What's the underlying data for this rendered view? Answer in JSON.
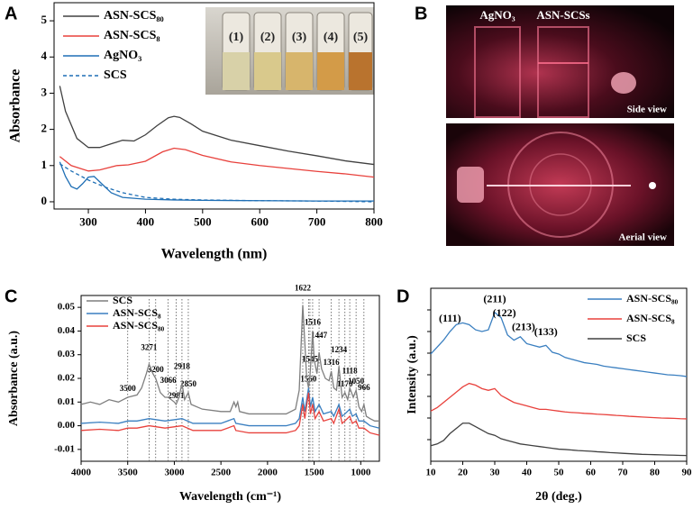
{
  "panels": [
    "A",
    "B",
    "C",
    "D"
  ],
  "photos": {
    "inset_labels": [
      "(1)",
      "(2)",
      "(3)",
      "(4)",
      "(5)"
    ],
    "side_labels": [
      "AgNO₃",
      "ASN-SCSs"
    ],
    "side_caption": "Side view",
    "aerial_caption": "Aerial view"
  },
  "chart_data": [
    {
      "type": "line",
      "xlabel": "Wavelength (nm)",
      "ylabel": "Absorbance",
      "xlim": [
        240,
        800
      ],
      "ylim": [
        -0.2,
        5.5
      ],
      "xticks": [
        300,
        400,
        500,
        600,
        700,
        800
      ],
      "yticks": [
        0,
        1,
        2,
        3,
        4,
        5
      ],
      "legend": "upper left",
      "series": [
        {
          "name": "ASN-SCS₈₀",
          "color": "#404040",
          "x": [
            250,
            260,
            280,
            300,
            320,
            340,
            360,
            380,
            400,
            420,
            440,
            450,
            460,
            480,
            500,
            550,
            600,
            650,
            700,
            750,
            800
          ],
          "values": [
            3.2,
            2.5,
            1.75,
            1.5,
            1.5,
            1.6,
            1.7,
            1.68,
            1.85,
            2.1,
            2.32,
            2.36,
            2.33,
            2.15,
            1.95,
            1.7,
            1.55,
            1.4,
            1.27,
            1.13,
            1.03
          ]
        },
        {
          "name": "ASN-SCS₈",
          "color": "#e8413c",
          "x": [
            250,
            270,
            300,
            320,
            350,
            370,
            400,
            430,
            450,
            470,
            500,
            550,
            600,
            650,
            700,
            750,
            800
          ],
          "values": [
            1.25,
            1.0,
            0.85,
            0.88,
            1.0,
            1.02,
            1.12,
            1.38,
            1.48,
            1.44,
            1.28,
            1.1,
            1.0,
            0.92,
            0.84,
            0.77,
            0.68
          ]
        },
        {
          "name": "AgNO₃",
          "color": "#1f6fb5",
          "x": [
            250,
            260,
            270,
            280,
            290,
            300,
            310,
            320,
            340,
            360,
            400,
            450,
            500,
            600,
            700,
            800
          ],
          "values": [
            1.1,
            0.7,
            0.42,
            0.35,
            0.5,
            0.68,
            0.7,
            0.55,
            0.25,
            0.12,
            0.07,
            0.05,
            0.04,
            0.03,
            0.02,
            0.02
          ]
        },
        {
          "name": "SCS",
          "color": "#1f6fb5",
          "dash": "dashed",
          "x": [
            250,
            270,
            300,
            330,
            360,
            400,
            450,
            500,
            600,
            700,
            800
          ],
          "values": [
            1.05,
            0.85,
            0.6,
            0.4,
            0.25,
            0.12,
            0.07,
            0.05,
            0.03,
            0.02,
            0.0
          ]
        }
      ]
    },
    {
      "type": "line",
      "xlabel": "Wavelength (cm⁻¹)",
      "ylabel": "Absorbance (a.u.)",
      "xlim": [
        4000,
        800
      ],
      "ylim": [
        -0.015,
        0.055
      ],
      "xticks": [
        4000,
        3500,
        3000,
        2500,
        2000,
        1500,
        1000
      ],
      "yticks": [
        -0.01,
        {
          "value": 0,
          "label": "0.00"
        },
        0.01,
        0.02,
        0.03,
        0.04,
        0.05
      ],
      "legend": "upper left",
      "peaks": [
        3500,
        3271,
        3200,
        3066,
        2981,
        2918,
        2850,
        1622,
        1560,
        1545,
        1516,
        1447,
        1316,
        1234,
        1170,
        1118,
        1050,
        966
      ],
      "series": [
        {
          "name": "SCS",
          "color": "#7f7f7f",
          "x": [
            4000,
            3900,
            3800,
            3700,
            3600,
            3500,
            3400,
            3350,
            3300,
            3271,
            3230,
            3200,
            3150,
            3100,
            3066,
            3000,
            2981,
            2950,
            2918,
            2890,
            2850,
            2820,
            2700,
            2500,
            2400,
            2360,
            2340,
            2320,
            2300,
            2200,
            2000,
            1800,
            1700,
            1660,
            1622,
            1600,
            1580,
            1560,
            1545,
            1530,
            1516,
            1500,
            1470,
            1447,
            1420,
            1380,
            1340,
            1316,
            1290,
            1260,
            1234,
            1200,
            1170,
            1140,
            1118,
            1080,
            1050,
            1020,
            990,
            966,
            940,
            900,
            850,
            800
          ],
          "values": [
            0.009,
            0.01,
            0.009,
            0.011,
            0.01,
            0.012,
            0.013,
            0.016,
            0.022,
            0.026,
            0.022,
            0.02,
            0.014,
            0.012,
            0.012,
            0.01,
            0.009,
            0.012,
            0.018,
            0.011,
            0.014,
            0.009,
            0.007,
            0.006,
            0.006,
            0.01,
            0.008,
            0.01,
            0.006,
            0.005,
            0.005,
            0.005,
            0.007,
            0.015,
            0.051,
            0.035,
            0.02,
            0.016,
            0.021,
            0.03,
            0.04,
            0.028,
            0.022,
            0.031,
            0.024,
            0.02,
            0.019,
            0.023,
            0.016,
            0.015,
            0.025,
            0.012,
            0.014,
            0.011,
            0.016,
            0.012,
            0.015,
            0.008,
            0.006,
            0.009,
            0.004,
            0.003,
            0.002,
            0.002
          ]
        },
        {
          "name": "ASN-SCS₈",
          "color": "#3a7fc0",
          "x": [
            4000,
            3800,
            3600,
            3500,
            3400,
            3271,
            3100,
            2918,
            2800,
            2500,
            2360,
            2340,
            2200,
            2000,
            1800,
            1700,
            1660,
            1622,
            1600,
            1560,
            1540,
            1516,
            1490,
            1447,
            1400,
            1316,
            1290,
            1234,
            1200,
            1170,
            1118,
            1090,
            1050,
            1020,
            966,
            900,
            800
          ],
          "values": [
            0.001,
            0.0015,
            0.001,
            0.002,
            0.002,
            0.003,
            0.002,
            0.003,
            0.001,
            0.001,
            0.003,
            0.001,
            0.0,
            0.0,
            0.0,
            0.001,
            0.003,
            0.012,
            0.006,
            0.016,
            0.008,
            0.012,
            0.006,
            0.009,
            0.005,
            0.006,
            0.004,
            0.009,
            0.004,
            0.005,
            0.007,
            0.004,
            0.005,
            0.002,
            0.002,
            0.0,
            -0.001
          ]
        },
        {
          "name": "ASN-SCS₈₀",
          "color": "#e8413c",
          "x": [
            4000,
            3800,
            3600,
            3500,
            3400,
            3271,
            3100,
            2918,
            2800,
            2500,
            2360,
            2340,
            2200,
            2000,
            1800,
            1700,
            1660,
            1622,
            1600,
            1560,
            1540,
            1516,
            1490,
            1447,
            1400,
            1316,
            1290,
            1234,
            1200,
            1170,
            1118,
            1090,
            1050,
            1020,
            966,
            900,
            800
          ],
          "values": [
            -0.002,
            -0.0015,
            -0.002,
            -0.001,
            -0.001,
            0.0,
            -0.001,
            0.0,
            -0.002,
            -0.002,
            0.0,
            -0.002,
            -0.003,
            -0.003,
            -0.003,
            -0.002,
            0.0,
            0.009,
            0.003,
            0.014,
            0.005,
            0.009,
            0.003,
            0.006,
            0.002,
            0.003,
            0.001,
            0.007,
            0.001,
            0.002,
            0.004,
            0.001,
            0.002,
            -0.001,
            -0.001,
            -0.003,
            -0.004
          ]
        }
      ]
    },
    {
      "type": "line",
      "xlabel": "2θ (deg.)",
      "ylabel": "Intensity (a.u.)",
      "xlim": [
        10,
        90
      ],
      "ylim": [
        0,
        10
      ],
      "xticks": [
        10,
        20,
        30,
        40,
        50,
        60,
        70,
        80,
        90
      ],
      "legend": "upper right",
      "annotations": [
        {
          "text": "(111)",
          "x": 16
        },
        {
          "text": "(211)",
          "x": 30
        },
        {
          "text": "(122)",
          "x": 33
        },
        {
          "text": "(213)",
          "x": 39
        },
        {
          "text": "(133)",
          "x": 46
        }
      ],
      "x": [
        10,
        12,
        14,
        16,
        18,
        20,
        22,
        24,
        26,
        28,
        30,
        32,
        34,
        36,
        38,
        40,
        42,
        44,
        46,
        48,
        50,
        52,
        54,
        56,
        58,
        60,
        62,
        64,
        66,
        68,
        70,
        72,
        74,
        76,
        78,
        80,
        82,
        84,
        86,
        88,
        90
      ],
      "series": [
        {
          "name": "ASN-SCS₈₀",
          "color": "#3a7fc0",
          "values": [
            6.2,
            6.6,
            7.0,
            7.5,
            7.9,
            8.0,
            7.9,
            7.6,
            7.5,
            7.6,
            8.6,
            8.3,
            7.3,
            7.0,
            7.2,
            6.8,
            6.7,
            6.6,
            6.7,
            6.3,
            6.2,
            6.0,
            5.9,
            5.8,
            5.7,
            5.65,
            5.6,
            5.5,
            5.45,
            5.4,
            5.35,
            5.3,
            5.25,
            5.2,
            5.15,
            5.1,
            5.05,
            5.0,
            4.98,
            4.95,
            4.9
          ]
        },
        {
          "name": "ASN-SCS₈",
          "color": "#e8413c",
          "values": [
            2.9,
            3.1,
            3.4,
            3.7,
            4.0,
            4.3,
            4.5,
            4.4,
            4.2,
            4.1,
            4.2,
            3.8,
            3.6,
            3.4,
            3.3,
            3.2,
            3.1,
            3.0,
            3.0,
            2.95,
            2.9,
            2.85,
            2.82,
            2.8,
            2.77,
            2.75,
            2.72,
            2.7,
            2.68,
            2.65,
            2.63,
            2.6,
            2.58,
            2.56,
            2.54,
            2.52,
            2.5,
            2.49,
            2.48,
            2.46,
            2.45
          ]
        },
        {
          "name": "SCS",
          "color": "#404040",
          "values": [
            0.9,
            1.0,
            1.2,
            1.6,
            1.9,
            2.2,
            2.2,
            2.0,
            1.8,
            1.6,
            1.5,
            1.3,
            1.2,
            1.1,
            1.0,
            0.95,
            0.9,
            0.85,
            0.8,
            0.75,
            0.7,
            0.68,
            0.65,
            0.62,
            0.6,
            0.58,
            0.55,
            0.53,
            0.5,
            0.48,
            0.46,
            0.44,
            0.42,
            0.4,
            0.39,
            0.38,
            0.37,
            0.36,
            0.35,
            0.34,
            0.33
          ]
        }
      ]
    }
  ]
}
